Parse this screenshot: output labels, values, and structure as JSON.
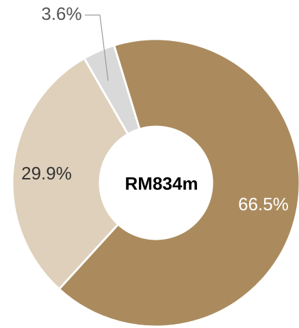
{
  "chart_data": {
    "type": "donut",
    "center_label": "RM834m",
    "values": [
      66.5,
      29.9,
      3.6
    ],
    "value_labels": [
      "66.5%",
      "29.9%",
      "3.6%"
    ],
    "colors": [
      "#ab8b5e",
      "#ded0bb",
      "#d9d9d9"
    ]
  }
}
